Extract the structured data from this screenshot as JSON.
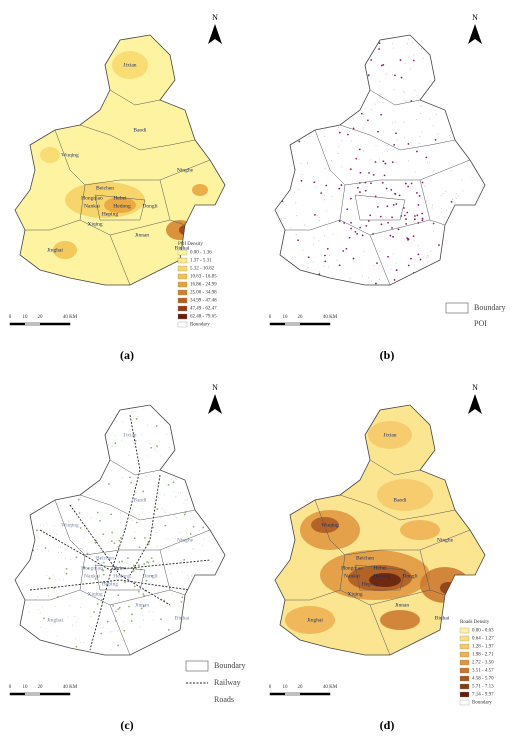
{
  "panels": [
    {
      "caption": "(a)",
      "north": "N",
      "scale": [
        "0",
        "10",
        "20",
        "40 KM"
      ],
      "districts": [
        "Jixian",
        "Baodi",
        "Wuqing",
        "Ninghe",
        "Beichen",
        "Hongqiao",
        "Hebei",
        "Nankai",
        "Hedong",
        "Dongli",
        "Heping",
        "Xiqing",
        "Jinnan",
        "Binhai",
        "Jinghai"
      ],
      "legend": {
        "title": "POI Density",
        "items": [
          {
            "label": "0.00 - 1.36",
            "color": "#fdf6a8"
          },
          {
            "label": "1.37 - 5.31",
            "color": "#fbe98a"
          },
          {
            "label": "5.32 - 10.62",
            "color": "#f8d86c"
          },
          {
            "label": "10.63 - 16.85",
            "color": "#f1c050"
          },
          {
            "label": "16.86 - 24.99",
            "color": "#e6a23a"
          },
          {
            "label": "25.00 - 34.98",
            "color": "#d4802a"
          },
          {
            "label": "34.99 - 47.48",
            "color": "#b95e1e"
          },
          {
            "label": "47.49 - 62.47",
            "color": "#963c14"
          },
          {
            "label": "62.48 - 79.65",
            "color": "#6e1a0a"
          },
          {
            "label": "Boundary",
            "color": "#ffffff"
          }
        ]
      }
    },
    {
      "caption": "(b)",
      "north": "N",
      "scale": [
        "0",
        "10",
        "20",
        "40 KM"
      ],
      "legend": {
        "items": [
          {
            "label": "Boundary",
            "symbol": "box"
          },
          {
            "label": "POI",
            "symbol": "none"
          }
        ]
      }
    },
    {
      "caption": "(c)",
      "north": "N",
      "scale": [
        "0",
        "10",
        "20",
        "40 KM"
      ],
      "districts": [
        "Jixian",
        "Baodi",
        "Wuqing",
        "Ninghe",
        "Beichen",
        "Hongqiao",
        "Hebei",
        "Nankai",
        "Hedong",
        "Dongli",
        "Heping",
        "Xiqing",
        "Jinnan",
        "Binhai",
        "Jinghai"
      ],
      "legend": {
        "items": [
          {
            "label": "Boundary",
            "symbol": "box"
          },
          {
            "label": "Railway",
            "symbol": "dash"
          },
          {
            "label": "Roads",
            "symbol": "none"
          }
        ]
      }
    },
    {
      "caption": "(d)",
      "north": "N",
      "scale": [
        "0",
        "10",
        "20",
        "40 KM"
      ],
      "districts": [
        "Jixian",
        "Baodi",
        "Wuqing",
        "Ninghe",
        "Beichen",
        "Hongqiao",
        "Hebei",
        "Nankai",
        "Hedong",
        "Dongli",
        "Heping",
        "Xiqing",
        "Jinnan",
        "Binhai",
        "Jinghai"
      ],
      "legend": {
        "title": "Roads Density",
        "items": [
          {
            "label": "0.00 - 0.63",
            "color": "#fdf2a8"
          },
          {
            "label": "0.64 - 1.27",
            "color": "#fae088"
          },
          {
            "label": "1.28 - 1.97",
            "color": "#f5c86a"
          },
          {
            "label": "1.98 - 2.71",
            "color": "#edb052"
          },
          {
            "label": "2.72 - 3.50",
            "color": "#e0953e"
          },
          {
            "label": "3.51 - 4.57",
            "color": "#c9762e"
          },
          {
            "label": "4.58 - 5.70",
            "color": "#aa5822"
          },
          {
            "label": "5.71 - 7.13",
            "color": "#873c16"
          },
          {
            "label": "7.14 - 9.97",
            "color": "#61200c"
          },
          {
            "label": "Boundary",
            "color": "#ffffff"
          }
        ]
      }
    }
  ]
}
